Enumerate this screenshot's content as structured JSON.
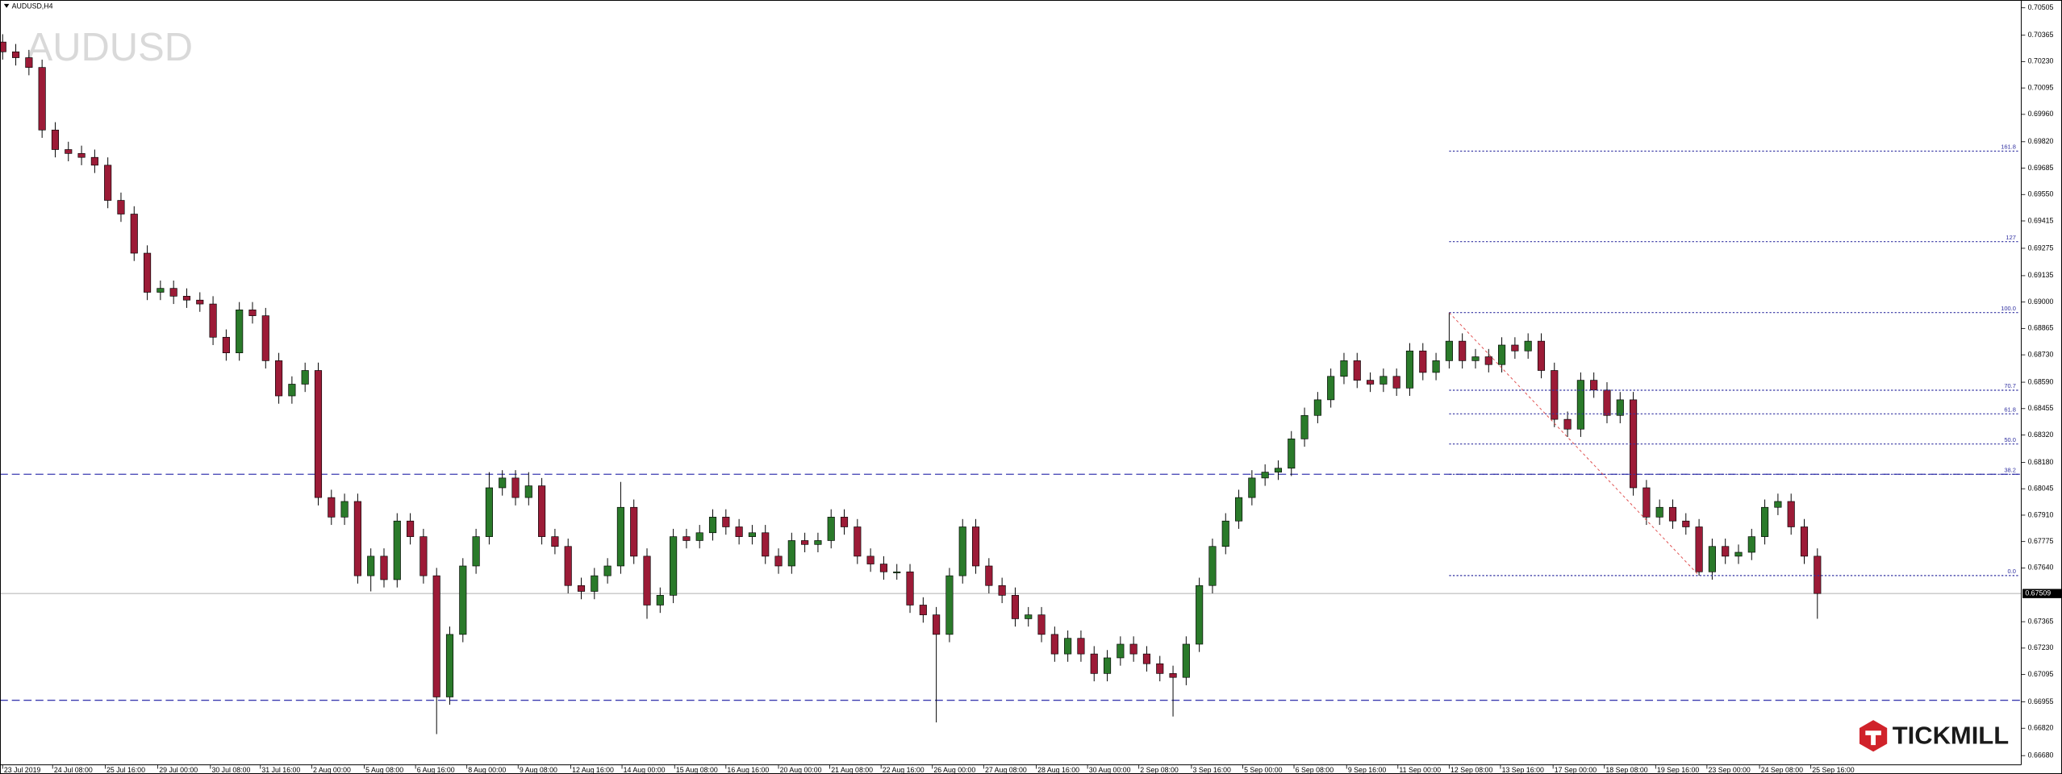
{
  "chart_data": {
    "type": "candlestick",
    "title": "AUDUSD,H4",
    "watermark": "AUDUSD",
    "brand": "TICKMILL",
    "up_color": "#2a7a2a",
    "down_color": "#9c1b37",
    "xlim": [
      -0.2,
      153.5
    ],
    "ylim": [
      0.66633,
      0.70545
    ],
    "yticks": [
      0.70505,
      0.70365,
      {
        "value": 0.7023,
        "label": "0.70230"
      },
      0.70095,
      {
        "value": 0.6996,
        "label": "0.69960"
      },
      {
        "value": 0.6982,
        "label": "0.69820"
      },
      0.69685,
      {
        "value": 0.6955,
        "label": "0.69550"
      },
      0.69415,
      0.69275,
      0.69135,
      {
        "value": 0.69,
        "label": "0.69000"
      },
      0.68865,
      {
        "value": 0.6873,
        "label": "0.68730"
      },
      {
        "value": 0.6859,
        "label": "0.68590"
      },
      0.68455,
      {
        "value": 0.6832,
        "label": "0.68320"
      },
      {
        "value": 0.6818,
        "label": "0.68180"
      },
      0.68045,
      {
        "value": 0.6791,
        "label": "0.67910"
      },
      0.67775,
      {
        "value": 0.6764,
        "label": "0.67640"
      },
      0.67365,
      {
        "value": 0.6723,
        "label": "0.67230"
      },
      0.67095,
      0.66955,
      {
        "value": 0.6682,
        "label": "0.66820"
      },
      {
        "value": 0.6668,
        "label": "0.66680"
      }
    ],
    "xticks": [
      {
        "value": 0,
        "label": "23 Jul 2019"
      },
      {
        "value": 3.8,
        "label": "24 Jul 08:00"
      },
      {
        "value": 7.8,
        "label": "25 Jul 16:00"
      },
      {
        "value": 11.8,
        "label": "29 Jul 00:00"
      },
      {
        "value": 15.8,
        "label": "30 Jul 08:00"
      },
      {
        "value": 19.6,
        "label": "31 Jul 16:00"
      },
      {
        "value": 23.5,
        "label": "2 Aug 00:00"
      },
      {
        "value": 27.5,
        "label": "5 Aug 08:00"
      },
      {
        "value": 31.4,
        "label": "6 Aug 16:00"
      },
      {
        "value": 35.3,
        "label": "8 Aug 00:00"
      },
      {
        "value": 39.2,
        "label": "9 Aug 08:00"
      },
      {
        "value": 43.2,
        "label": "12 Aug 16:00"
      },
      {
        "value": 47.1,
        "label": "14 Aug 00:00"
      },
      {
        "value": 51.1,
        "label": "15 Aug 08:00"
      },
      {
        "value": 55,
        "label": "16 Aug 16:00"
      },
      {
        "value": 59,
        "label": "20 Aug 00:00"
      },
      {
        "value": 62.9,
        "label": "21 Aug 08:00"
      },
      {
        "value": 66.8,
        "label": "22 Aug 16:00"
      },
      {
        "value": 70.7,
        "label": "26 Aug 00:00"
      },
      {
        "value": 74.6,
        "label": "27 Aug 08:00"
      },
      {
        "value": 78.6,
        "label": "28 Aug 16:00"
      },
      {
        "value": 82.5,
        "label": "30 Aug 00:00"
      },
      {
        "value": 86.4,
        "label": "2 Sep 08:00"
      },
      {
        "value": 90.4,
        "label": "3 Sep 16:00"
      },
      {
        "value": 94.3,
        "label": "5 Sep 00:00"
      },
      {
        "value": 98.2,
        "label": "6 Sep 08:00"
      },
      {
        "value": 102.2,
        "label": "9 Sep 16:00"
      },
      {
        "value": 106.1,
        "label": "11 Sep 00:00"
      },
      {
        "value": 110,
        "label": "12 Sep 08:00"
      },
      {
        "value": 113.9,
        "label": "13 Sep 16:00"
      },
      {
        "value": 117.9,
        "label": "17 Sep 00:00"
      },
      {
        "value": 121.8,
        "label": "18 Sep 08:00"
      },
      {
        "value": 125.7,
        "label": "19 Sep 16:00"
      },
      {
        "value": 129.6,
        "label": "23 Sep 00:00"
      },
      {
        "value": 133.6,
        "label": "24 Sep 08:00"
      },
      {
        "value": 137.5,
        "label": "25 Sep 16:00"
      }
    ],
    "open": [
      0.7033,
      0.7028,
      0.7025,
      0.702,
      0.6988,
      0.6978,
      0.6976,
      0.6974,
      0.697,
      0.6952,
      0.6945,
      0.6925,
      0.6905,
      0.6907,
      0.6903,
      0.6901,
      0.6899,
      0.6882,
      0.6874,
      0.6896,
      0.6893,
      0.687,
      0.6852,
      0.6858,
      0.6865,
      0.68,
      0.679,
      0.6798,
      0.676,
      0.677,
      0.6758,
      0.6788,
      0.678,
      0.676,
      0.6698,
      0.673,
      0.6765,
      0.678,
      0.6805,
      0.681,
      0.68,
      0.6806,
      0.678,
      0.6775,
      0.6755,
      0.6752,
      0.676,
      0.6765,
      0.6795,
      0.677,
      0.6745,
      0.675,
      0.678,
      0.6778,
      0.6782,
      0.679,
      0.6785,
      0.678,
      0.6782,
      0.677,
      0.6765,
      0.6778,
      0.6776,
      0.6778,
      0.679,
      0.6785,
      0.677,
      0.6766,
      0.6762,
      0.6762,
      0.6745,
      0.674,
      0.673,
      0.676,
      0.6785,
      0.6765,
      0.6755,
      0.675,
      0.6738,
      0.674,
      0.673,
      0.672,
      0.6728,
      0.672,
      0.671,
      0.6718,
      0.6725,
      0.672,
      0.6715,
      0.671,
      0.6708,
      0.6725,
      0.6755,
      0.6775,
      0.6788,
      0.68,
      0.681,
      0.6813,
      0.6815,
      0.683,
      0.6842,
      0.685,
      0.6862,
      0.687,
      0.686,
      0.6858,
      0.6862,
      0.6856,
      0.6875,
      0.6864,
      0.687,
      0.688,
      0.687,
      0.6872,
      0.6868,
      0.6878,
      0.6875,
      0.688,
      0.6865,
      0.684,
      0.6835,
      0.686,
      0.6855,
      0.6842,
      0.685,
      0.6805,
      0.679,
      0.6795,
      0.6788,
      0.6785,
      0.6762,
      0.6775,
      0.677,
      0.6772,
      0.678,
      0.6795,
      0.6798,
      0.6785,
      0.677
    ],
    "high": [
      0.7037,
      0.7032,
      0.7029,
      0.7024,
      0.6992,
      0.6982,
      0.698,
      0.6978,
      0.6974,
      0.6956,
      0.6949,
      0.6929,
      0.6911,
      0.6911,
      0.6907,
      0.6905,
      0.6903,
      0.6886,
      0.69,
      0.69,
      0.6897,
      0.6874,
      0.6862,
      0.6869,
      0.6869,
      0.6804,
      0.6802,
      0.6802,
      0.6774,
      0.6774,
      0.6792,
      0.6792,
      0.6784,
      0.6764,
      0.6734,
      0.6769,
      0.6784,
      0.6813,
      0.6814,
      0.6814,
      0.6813,
      0.681,
      0.6784,
      0.6779,
      0.6759,
      0.6764,
      0.6769,
      0.6808,
      0.6799,
      0.6774,
      0.6754,
      0.6784,
      0.6784,
      0.6786,
      0.6794,
      0.6794,
      0.6789,
      0.6786,
      0.6786,
      0.6774,
      0.6782,
      0.6782,
      0.6782,
      0.6794,
      0.6794,
      0.6789,
      0.6774,
      0.677,
      0.6766,
      0.6766,
      0.6749,
      0.6744,
      0.6764,
      0.6789,
      0.6789,
      0.6769,
      0.6759,
      0.6754,
      0.6744,
      0.6744,
      0.6734,
      0.6732,
      0.6732,
      0.6724,
      0.6722,
      0.6729,
      0.6729,
      0.6724,
      0.6719,
      0.6714,
      0.6729,
      0.6759,
      0.6779,
      0.6792,
      0.6804,
      0.6814,
      0.6817,
      0.6819,
      0.6834,
      0.6846,
      0.6854,
      0.6866,
      0.6874,
      0.6874,
      0.6864,
      0.6866,
      0.6866,
      0.6879,
      0.6879,
      0.6874,
      0.68946,
      0.6884,
      0.6876,
      0.6876,
      0.6882,
      0.6882,
      0.6884,
      0.6884,
      0.6869,
      0.6844,
      0.6864,
      0.6864,
      0.6859,
      0.6854,
      0.6854,
      0.6809,
      0.6799,
      0.6799,
      0.6792,
      0.6789,
      0.6779,
      0.6779,
      0.6776,
      0.6784,
      0.6799,
      0.6802,
      0.6802,
      0.6789,
      0.6774
    ],
    "low": [
      0.7024,
      0.7021,
      0.7016,
      0.6984,
      0.6974,
      0.6972,
      0.697,
      0.6966,
      0.6948,
      0.6941,
      0.6921,
      0.6901,
      0.6901,
      0.6899,
      0.6897,
      0.6895,
      0.6878,
      0.687,
      0.687,
      0.6889,
      0.6866,
      0.6848,
      0.6848,
      0.6854,
      0.6796,
      0.6786,
      0.6786,
      0.6756,
      0.6752,
      0.6754,
      0.6754,
      0.6776,
      0.6756,
      0.6679,
      0.6694,
      0.6726,
      0.6761,
      0.6776,
      0.6801,
      0.6796,
      0.6796,
      0.6776,
      0.6771,
      0.6751,
      0.6748,
      0.6748,
      0.6756,
      0.6761,
      0.6766,
      0.6738,
      0.6741,
      0.6746,
      0.6774,
      0.6774,
      0.6778,
      0.6781,
      0.6776,
      0.6776,
      0.6766,
      0.6761,
      0.6761,
      0.6772,
      0.6772,
      0.6774,
      0.6781,
      0.6766,
      0.6762,
      0.6758,
      0.6758,
      0.6741,
      0.6736,
      0.6685,
      0.6726,
      0.6756,
      0.6761,
      0.6751,
      0.6746,
      0.6734,
      0.6734,
      0.6726,
      0.6716,
      0.6716,
      0.6716,
      0.6706,
      0.6706,
      0.6714,
      0.6716,
      0.6711,
      0.6706,
      0.6688,
      0.6704,
      0.6721,
      0.6751,
      0.6771,
      0.6784,
      0.6796,
      0.6806,
      0.6809,
      0.6811,
      0.6826,
      0.6838,
      0.6846,
      0.6858,
      0.6856,
      0.6854,
      0.6854,
      0.6852,
      0.6852,
      0.686,
      0.686,
      0.6866,
      0.6866,
      0.6866,
      0.6864,
      0.6864,
      0.6871,
      0.6871,
      0.6861,
      0.6836,
      0.6831,
      0.6831,
      0.6851,
      0.6838,
      0.6838,
      0.6801,
      0.6786,
      0.6786,
      0.6784,
      0.6781,
      0.67601,
      0.6758,
      0.6766,
      0.6766,
      0.6768,
      0.6776,
      0.6791,
      0.6781,
      0.6766,
      0.6738
    ],
    "close": [
      0.7028,
      0.7025,
      0.702,
      0.6988,
      0.6978,
      0.6976,
      0.6974,
      0.697,
      0.6952,
      0.6945,
      0.6925,
      0.6905,
      0.6907,
      0.6903,
      0.6901,
      0.6899,
      0.6882,
      0.6874,
      0.6896,
      0.6893,
      0.687,
      0.6852,
      0.6858,
      0.6865,
      0.68,
      0.679,
      0.6798,
      0.676,
      0.677,
      0.6758,
      0.6788,
      0.678,
      0.676,
      0.6698,
      0.673,
      0.6765,
      0.678,
      0.6805,
      0.681,
      0.68,
      0.6806,
      0.678,
      0.6775,
      0.6755,
      0.6752,
      0.676,
      0.6765,
      0.6795,
      0.677,
      0.6745,
      0.675,
      0.678,
      0.6778,
      0.6782,
      0.679,
      0.6785,
      0.678,
      0.6782,
      0.677,
      0.6765,
      0.6778,
      0.6776,
      0.6778,
      0.679,
      0.6785,
      0.677,
      0.6766,
      0.6762,
      0.6762,
      0.6745,
      0.674,
      0.673,
      0.676,
      0.6785,
      0.6765,
      0.6755,
      0.675,
      0.6738,
      0.674,
      0.673,
      0.672,
      0.6728,
      0.672,
      0.671,
      0.6718,
      0.6725,
      0.672,
      0.6715,
      0.671,
      0.6708,
      0.6725,
      0.6755,
      0.6775,
      0.6788,
      0.68,
      0.681,
      0.6813,
      0.6815,
      0.683,
      0.6842,
      0.685,
      0.6862,
      0.687,
      0.686,
      0.6858,
      0.6862,
      0.6856,
      0.6875,
      0.6864,
      0.687,
      0.688,
      0.687,
      0.6872,
      0.6868,
      0.6878,
      0.6875,
      0.688,
      0.6865,
      0.684,
      0.6835,
      0.686,
      0.6855,
      0.6842,
      0.685,
      0.6805,
      0.679,
      0.6795,
      0.6788,
      0.6785,
      0.6762,
      0.6775,
      0.677,
      0.6772,
      0.678,
      0.6795,
      0.6798,
      0.6785,
      0.677,
      0.67509
    ],
    "hlines": [
      0.68119,
      0.66963
    ],
    "last_price": 0.67509,
    "fibo": [
      {
        "label": "161.8",
        "price": 0.69772
      },
      {
        "label": "127",
        "price": 0.69309
      },
      {
        "label": "100.0",
        "price": 0.68946
      },
      {
        "label": "70.7",
        "price": 0.68549
      },
      {
        "label": "61.8",
        "price": 0.68428
      },
      {
        "label": "50.0",
        "price": 0.68274
      },
      {
        "label": "38.2",
        "price": 0.68119
      },
      {
        "label": "0.0",
        "price": 0.67601
      }
    ]
  }
}
